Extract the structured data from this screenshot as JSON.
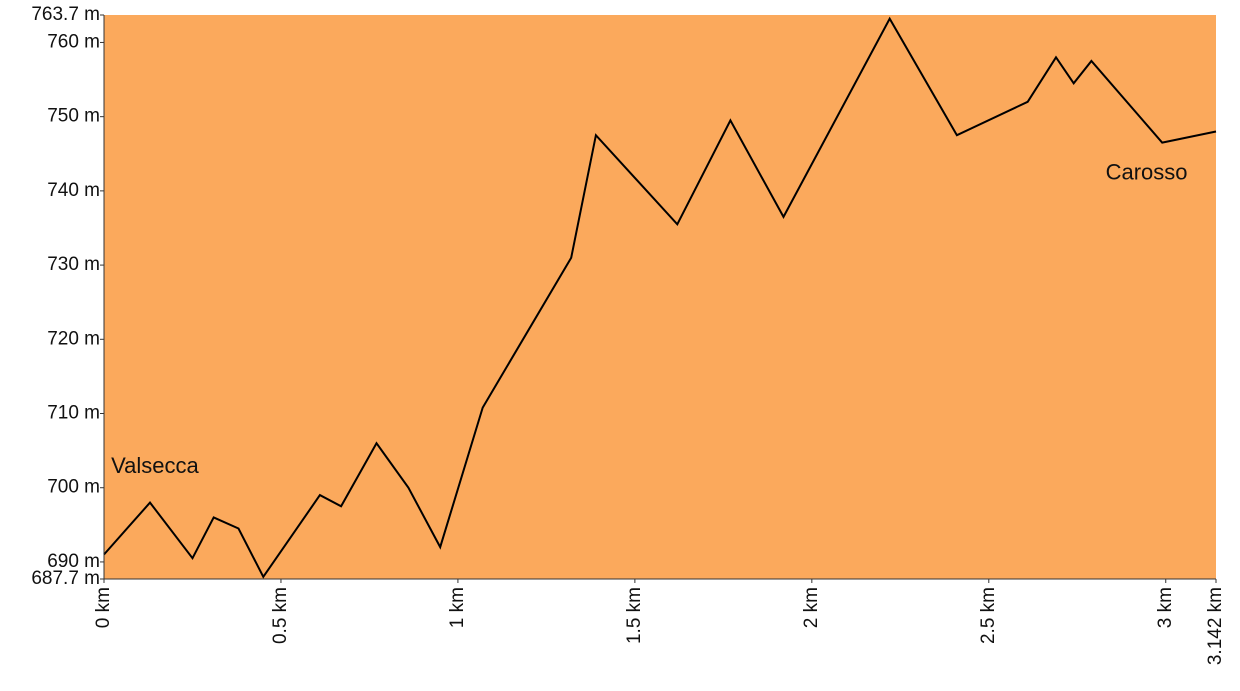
{
  "chart_data": {
    "type": "area",
    "title": "",
    "xlabel": "",
    "ylabel": "",
    "x_unit": "km",
    "y_unit": "m",
    "xlim": [
      0,
      3.142
    ],
    "ylim": [
      687.7,
      763.7
    ],
    "fill_color": "#FBA95C",
    "line_color": "#000000",
    "x_ticks": [
      {
        "value": 0,
        "label": "0 km"
      },
      {
        "value": 0.5,
        "label": "0.5 km"
      },
      {
        "value": 1,
        "label": "1 km"
      },
      {
        "value": 1.5,
        "label": "1.5 km"
      },
      {
        "value": 2,
        "label": "2 km"
      },
      {
        "value": 2.5,
        "label": "2.5 km"
      },
      {
        "value": 3,
        "label": "3 km"
      },
      {
        "value": 3.142,
        "label": "3.142 km"
      }
    ],
    "y_ticks": [
      {
        "value": 687.7,
        "label": "687.7 m"
      },
      {
        "value": 690,
        "label": "690 m"
      },
      {
        "value": 700,
        "label": "700 m"
      },
      {
        "value": 710,
        "label": "710 m"
      },
      {
        "value": 720,
        "label": "720 m"
      },
      {
        "value": 730,
        "label": "730 m"
      },
      {
        "value": 740,
        "label": "740 m"
      },
      {
        "value": 750,
        "label": "750 m"
      },
      {
        "value": 760,
        "label": "760 m"
      },
      {
        "value": 763.7,
        "label": "763.7 m"
      }
    ],
    "x": [
      0,
      0.13,
      0.25,
      0.31,
      0.38,
      0.45,
      0.61,
      0.67,
      0.77,
      0.86,
      0.95,
      1.07,
      1.32,
      1.39,
      1.62,
      1.77,
      1.92,
      2.22,
      2.41,
      2.61,
      2.69,
      2.74,
      2.79,
      2.99,
      3.142
    ],
    "y": [
      691,
      698,
      690.5,
      696,
      694.5,
      688,
      699,
      697.5,
      706,
      700,
      692,
      710.8,
      731,
      747.5,
      735.5,
      749.5,
      736.5,
      763.2,
      747.5,
      752,
      758,
      754.5,
      757.5,
      746.5,
      748
    ],
    "annotations": [
      {
        "text": "Valsecca",
        "x": 0.02,
        "y": 702
      },
      {
        "text": "Carosso",
        "x": 2.83,
        "y": 741.5
      }
    ]
  }
}
